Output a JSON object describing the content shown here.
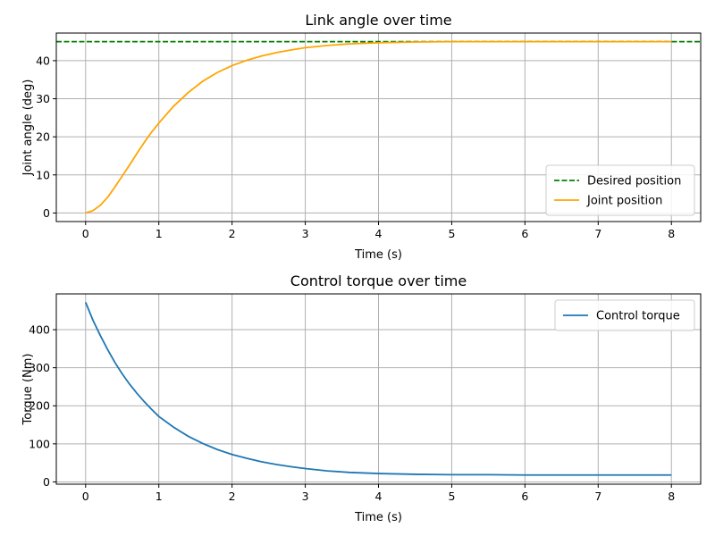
{
  "chart_data": [
    {
      "type": "line",
      "title": "Link angle over time",
      "xlabel": "Time (s)",
      "ylabel": "Joint angle (deg)",
      "xlim": [
        -0.4,
        8.4
      ],
      "ylim": [
        -2.25,
        47.25
      ],
      "xticks": [
        0,
        1,
        2,
        3,
        4,
        5,
        6,
        7,
        8
      ],
      "yticks": [
        0,
        10,
        20,
        30,
        40
      ],
      "grid": true,
      "legend_position": "lower-right",
      "series": [
        {
          "name": "Desired position",
          "color": "#008000",
          "style": "dashed",
          "x": [
            -0.4,
            8.4
          ],
          "y": [
            45,
            45
          ]
        },
        {
          "name": "Joint position",
          "color": "#ffa500",
          "style": "solid",
          "x": [
            0,
            0.1,
            0.2,
            0.3,
            0.4,
            0.5,
            0.6,
            0.7,
            0.8,
            0.9,
            1.0,
            1.2,
            1.4,
            1.6,
            1.8,
            2.0,
            2.2,
            2.4,
            2.6,
            2.8,
            3.0,
            3.3,
            3.6,
            4.0,
            4.5,
            5.0,
            5.5,
            6.0,
            7.0,
            8.0
          ],
          "y": [
            0,
            0.6,
            2.0,
            4.1,
            6.8,
            9.7,
            12.6,
            15.6,
            18.5,
            21.2,
            23.6,
            28.0,
            31.6,
            34.6,
            36.9,
            38.7,
            40.1,
            41.2,
            42.1,
            42.8,
            43.4,
            44.0,
            44.4,
            44.7,
            44.9,
            45.0,
            45.0,
            45.0,
            45.0,
            45.0
          ]
        }
      ]
    },
    {
      "type": "line",
      "title": "Control torque over time",
      "xlabel": "Time (s)",
      "ylabel": "Torque (Nm)",
      "xlim": [
        -0.4,
        8.4
      ],
      "ylim": [
        -6,
        494
      ],
      "xticks": [
        0,
        1,
        2,
        3,
        4,
        5,
        6,
        7,
        8
      ],
      "yticks": [
        0,
        100,
        200,
        300,
        400
      ],
      "grid": true,
      "legend_position": "upper-right",
      "series": [
        {
          "name": "Control torque",
          "color": "#1f77b4",
          "style": "solid",
          "x": [
            0,
            0.1,
            0.2,
            0.3,
            0.4,
            0.5,
            0.6,
            0.7,
            0.8,
            0.9,
            1.0,
            1.2,
            1.4,
            1.6,
            1.8,
            2.0,
            2.2,
            2.4,
            2.6,
            2.8,
            3.0,
            3.3,
            3.6,
            4.0,
            4.5,
            5.0,
            5.5,
            6.0,
            7.0,
            8.0
          ],
          "y": [
            472,
            425,
            385,
            348,
            314,
            284,
            257,
            233,
            211,
            191,
            172,
            144,
            120,
            101,
            85,
            72,
            62,
            53,
            46,
            40,
            35,
            29,
            25,
            22,
            20,
            19,
            19,
            18,
            18,
            18
          ]
        }
      ]
    }
  ]
}
